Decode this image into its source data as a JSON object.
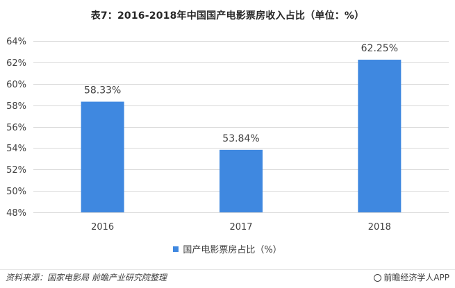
{
  "title": "表7：2016-2018年中国国产电影票房收入占比（单位：%）",
  "chart_data": {
    "type": "bar",
    "title": "表7：2016-2018年中国国产电影票房收入占比（单位：%）",
    "categories": [
      "2016",
      "2017",
      "2018"
    ],
    "series": [
      {
        "name": "国产电影票房占比（%）",
        "values": [
          58.33,
          53.84,
          62.25
        ],
        "labels": [
          "58.33%",
          "53.84%",
          "62.25%"
        ]
      }
    ],
    "ylim": [
      48,
      64
    ],
    "yticks": [
      48,
      50,
      52,
      54,
      56,
      58,
      60,
      62,
      64
    ],
    "ytick_labels": [
      "48%",
      "50%",
      "52%",
      "54%",
      "56%",
      "58%",
      "60%",
      "62%",
      "64%"
    ],
    "grid": true,
    "legend_position": "bottom",
    "bar_color": "#3f88e0"
  },
  "legend": {
    "label": "国产电影票房占比（%）"
  },
  "footer": {
    "source": "资料来源：国家电影局  前瞻产业研究院整理",
    "brand": "前瞻经济学人APP"
  }
}
